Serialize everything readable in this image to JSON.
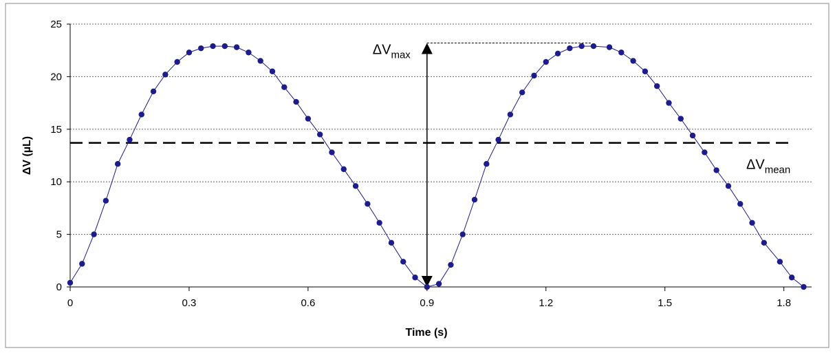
{
  "chart_data": {
    "type": "line",
    "xlabel": "Time (s)",
    "ylabel": "ΔV (µL)",
    "xlim": [
      0,
      1.87
    ],
    "xticks": [
      0,
      0.3,
      0.6,
      0.9,
      1.2,
      1.5,
      1.8
    ],
    "ylim": [
      0,
      25
    ],
    "yticks": [
      0,
      5,
      10,
      15,
      20,
      25
    ],
    "grid": true,
    "series": [
      {
        "color": "#1c1c8c",
        "x": [
          0,
          0.03,
          0.06,
          0.09,
          0.12,
          0.15,
          0.18,
          0.21,
          0.24,
          0.27,
          0.3,
          0.33,
          0.36,
          0.39,
          0.42,
          0.45,
          0.48,
          0.51,
          0.54,
          0.57,
          0.6,
          0.63,
          0.66,
          0.69,
          0.72,
          0.75,
          0.78,
          0.81,
          0.84,
          0.87,
          0.9,
          0.93,
          0.96,
          0.99,
          1.02,
          1.05,
          1.08,
          1.11,
          1.14,
          1.17,
          1.2,
          1.23,
          1.26,
          1.29,
          1.32,
          1.36,
          1.39,
          1.42,
          1.45,
          1.48,
          1.51,
          1.54,
          1.57,
          1.6,
          1.63,
          1.66,
          1.69,
          1.72,
          1.75,
          1.79,
          1.82,
          1.85
        ],
        "values": [
          0.4,
          2.2,
          5.0,
          8.2,
          11.7,
          14.0,
          16.4,
          18.6,
          20.2,
          21.4,
          22.3,
          22.7,
          22.9,
          22.9,
          22.8,
          22.3,
          21.5,
          20.5,
          19.0,
          17.6,
          16.0,
          14.5,
          12.8,
          11.2,
          9.6,
          7.9,
          6.1,
          4.2,
          2.4,
          0.9,
          0.0,
          0.3,
          2.1,
          5.0,
          8.3,
          11.7,
          14.0,
          16.4,
          18.5,
          20.1,
          21.4,
          22.2,
          22.7,
          22.9,
          22.9,
          22.8,
          22.3,
          21.5,
          20.5,
          19.1,
          17.5,
          16.0,
          14.4,
          12.8,
          11.1,
          9.6,
          7.9,
          6.1,
          4.2,
          2.4,
          0.9,
          0.0
        ]
      }
    ],
    "annotations": {
      "max": {
        "text": "ΔV",
        "sub": "max",
        "value": 23.2,
        "x": 0.9
      },
      "mean": {
        "text": "ΔV",
        "sub": "mean",
        "value": 13.7
      }
    }
  }
}
